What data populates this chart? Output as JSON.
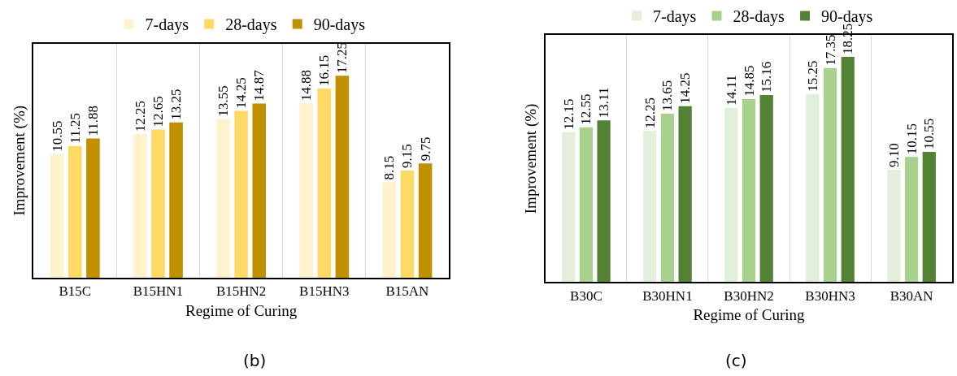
{
  "chart_data": [
    {
      "type": "bar",
      "xlabel": "Regime of Curing",
      "ylabel": "Improvement (%)",
      "categories": [
        "B15C",
        "B15HN1",
        "B15HN2",
        "B15HN3",
        "B15AN"
      ],
      "ylim": [
        0,
        20
      ],
      "tick_labels": "x",
      "grid": "x",
      "legend": "top",
      "annotations": [
        "(b)"
      ],
      "series": [
        {
          "name": "7-days",
          "color": "#fff2cc",
          "values": [
            10.55,
            12.25,
            13.55,
            14.88,
            8.15
          ],
          "value_labels": [
            "10.55",
            "12.25",
            "13.55",
            "14.88",
            "8.15"
          ]
        },
        {
          "name": "28-days",
          "color": "#ffd966",
          "values": [
            11.25,
            12.65,
            14.25,
            16.15,
            9.15
          ],
          "value_labels": [
            "11.25",
            "12.65",
            "14.25",
            "16.15",
            "9.15"
          ]
        },
        {
          "name": "90-days",
          "color": "#bf9000",
          "values": [
            11.88,
            13.25,
            14.87,
            17.25,
            9.75
          ],
          "value_labels": [
            "11.88",
            "13.25",
            "14.87",
            "17.25",
            "9.75"
          ]
        }
      ]
    },
    {
      "type": "bar",
      "xlabel": "Regime of Curing",
      "ylabel": "Improvement (%)",
      "categories": [
        "B30C",
        "B30HN1",
        "B30HN2",
        "B30HN3",
        "B30AN"
      ],
      "ylim": [
        0,
        20
      ],
      "tick_labels": "x",
      "grid": "x",
      "legend": "top",
      "annotations": [
        "(c)"
      ],
      "series": [
        {
          "name": "7-days",
          "color": "#e2efda",
          "values": [
            12.15,
            12.25,
            14.11,
            15.25,
            9.1
          ],
          "value_labels": [
            "12.15",
            "12.25",
            "14.11",
            "15.25",
            "9.10"
          ]
        },
        {
          "name": "28-days",
          "color": "#a9d18e",
          "values": [
            12.55,
            13.65,
            14.85,
            17.35,
            10.15
          ],
          "value_labels": [
            "12.55",
            "13.65",
            "14.85",
            "17.35",
            "10.15"
          ]
        },
        {
          "name": "90-days",
          "color": "#548235",
          "values": [
            13.11,
            14.25,
            15.16,
            18.25,
            10.55
          ],
          "value_labels": [
            "13.11",
            "14.25",
            "15.16",
            "18.25",
            "10.55"
          ]
        }
      ]
    }
  ]
}
